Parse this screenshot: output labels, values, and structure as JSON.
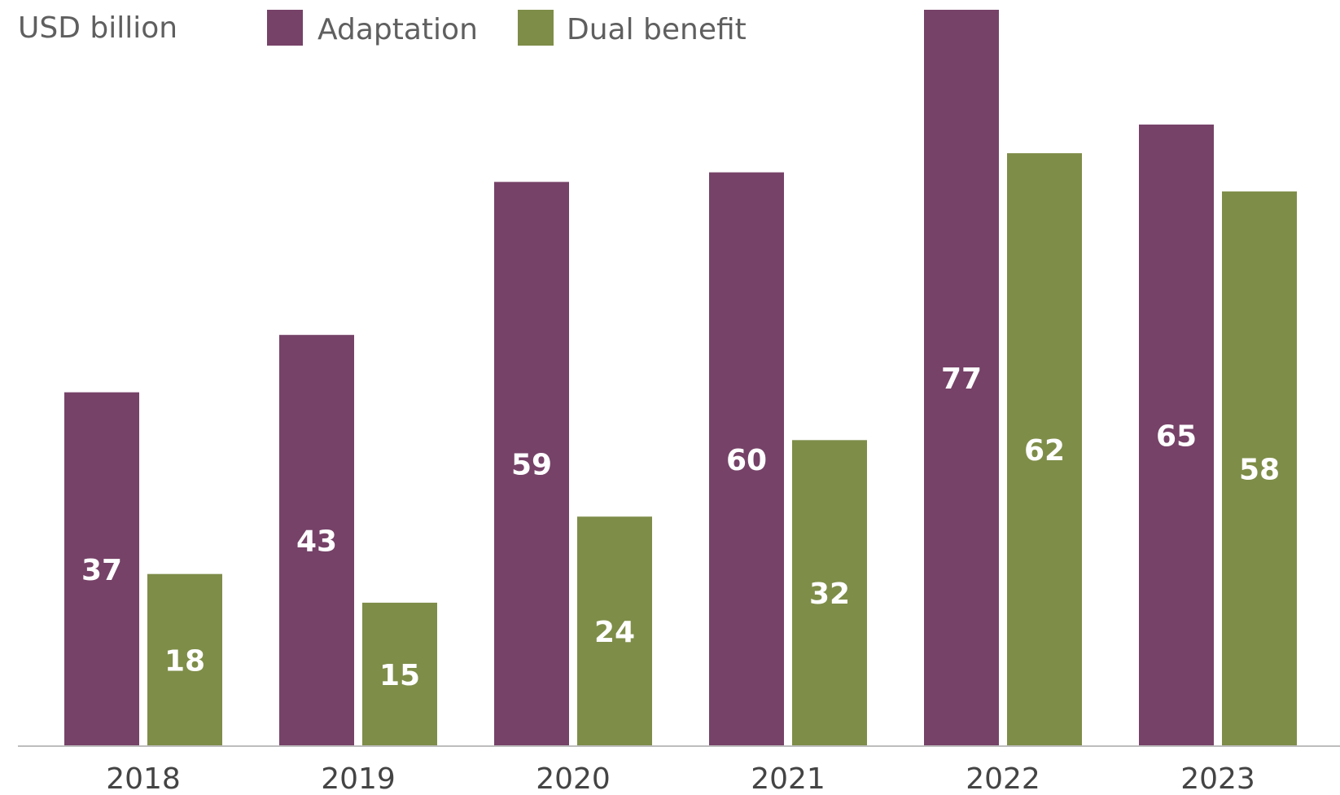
{
  "chart_data": {
    "type": "bar",
    "unit_label": "USD billion",
    "categories": [
      "2018",
      "2019",
      "2020",
      "2021",
      "2022",
      "2023"
    ],
    "series": [
      {
        "name": "Adaptation",
        "color": "#764268",
        "values": [
          37,
          43,
          59,
          60,
          77,
          65
        ]
      },
      {
        "name": "Dual benefit",
        "color": "#7e8d48",
        "values": [
          18,
          15,
          24,
          32,
          62,
          58
        ]
      }
    ],
    "ylim": [
      0,
      77
    ],
    "grid": false,
    "legend_position": "top-left",
    "axis_color": "#bdbdbd"
  }
}
